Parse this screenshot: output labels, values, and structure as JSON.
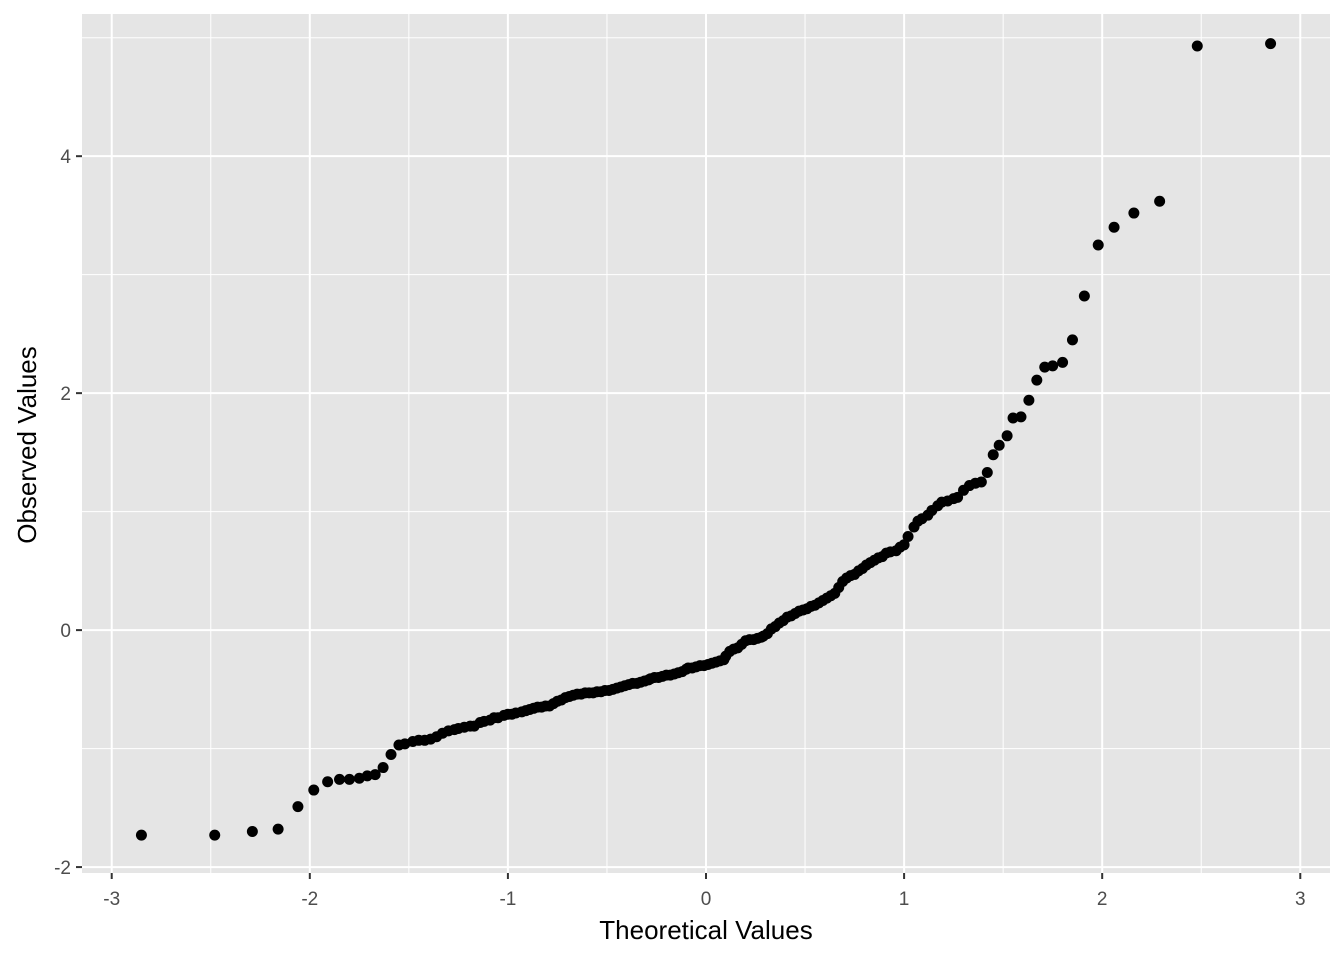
{
  "chart_data": {
    "type": "scatter",
    "title": "",
    "xlabel": "Theoretical Values",
    "ylabel": "Observed Values",
    "xlim": [
      -3.15,
      3.15
    ],
    "ylim": [
      -2.05,
      5.2
    ],
    "x_ticks": [
      -3,
      -2,
      -1,
      0,
      1,
      2,
      3
    ],
    "y_ticks": [
      -2,
      0,
      2,
      4
    ],
    "grid": true,
    "legend": "none",
    "panel_color": "#e5e5e5",
    "point_color": "#000000",
    "grid_color": "#ffffff",
    "series": [
      {
        "points": [
          [
            -2.85,
            -1.73
          ],
          [
            -2.48,
            -1.73
          ],
          [
            -2.29,
            -1.7
          ],
          [
            -2.16,
            -1.68
          ],
          [
            -2.06,
            -1.49
          ],
          [
            -1.98,
            -1.35
          ],
          [
            -1.91,
            -1.28
          ],
          [
            -1.85,
            -1.26
          ],
          [
            -1.8,
            -1.26
          ],
          [
            -1.75,
            -1.25
          ],
          [
            -1.71,
            -1.23
          ],
          [
            -1.67,
            -1.22
          ],
          [
            -1.63,
            -1.16
          ],
          [
            -1.59,
            -1.05
          ],
          [
            -1.55,
            -0.97
          ],
          [
            -1.52,
            -0.96
          ],
          [
            -1.48,
            -0.94
          ],
          [
            -1.45,
            -0.93
          ],
          [
            -1.42,
            -0.93
          ],
          [
            -1.39,
            -0.92
          ],
          [
            -1.36,
            -0.9
          ],
          [
            -1.33,
            -0.87
          ],
          [
            -1.3,
            -0.85
          ],
          [
            -1.27,
            -0.84
          ],
          [
            -1.25,
            -0.83
          ],
          [
            -1.22,
            -0.82
          ],
          [
            -1.19,
            -0.81
          ],
          [
            -1.17,
            -0.81
          ],
          [
            -1.14,
            -0.78
          ],
          [
            -1.12,
            -0.77
          ],
          [
            -1.09,
            -0.76
          ],
          [
            -1.07,
            -0.74
          ],
          [
            -1.05,
            -0.74
          ],
          [
            -1.02,
            -0.72
          ],
          [
            -1.0,
            -0.71
          ],
          [
            -0.98,
            -0.71
          ],
          [
            -0.96,
            -0.7
          ],
          [
            -0.93,
            -0.69
          ],
          [
            -0.91,
            -0.68
          ],
          [
            -0.89,
            -0.67
          ],
          [
            -0.87,
            -0.66
          ],
          [
            -0.85,
            -0.65
          ],
          [
            -0.83,
            -0.65
          ],
          [
            -0.81,
            -0.64
          ],
          [
            -0.79,
            -0.64
          ],
          [
            -0.77,
            -0.62
          ],
          [
            -0.75,
            -0.6
          ],
          [
            -0.73,
            -0.59
          ],
          [
            -0.71,
            -0.57
          ],
          [
            -0.69,
            -0.56
          ],
          [
            -0.67,
            -0.55
          ],
          [
            -0.65,
            -0.54
          ],
          [
            -0.63,
            -0.54
          ],
          [
            -0.61,
            -0.53
          ],
          [
            -0.59,
            -0.53
          ],
          [
            -0.57,
            -0.53
          ],
          [
            -0.55,
            -0.52
          ],
          [
            -0.53,
            -0.52
          ],
          [
            -0.51,
            -0.51
          ],
          [
            -0.49,
            -0.51
          ],
          [
            -0.47,
            -0.5
          ],
          [
            -0.45,
            -0.49
          ],
          [
            -0.43,
            -0.48
          ],
          [
            -0.41,
            -0.47
          ],
          [
            -0.39,
            -0.46
          ],
          [
            -0.37,
            -0.45
          ],
          [
            -0.35,
            -0.45
          ],
          [
            -0.33,
            -0.44
          ],
          [
            -0.31,
            -0.43
          ],
          [
            -0.29,
            -0.42
          ],
          [
            -0.28,
            -0.41
          ],
          [
            -0.26,
            -0.4
          ],
          [
            -0.24,
            -0.4
          ],
          [
            -0.22,
            -0.39
          ],
          [
            -0.2,
            -0.38
          ],
          [
            -0.18,
            -0.38
          ],
          [
            -0.16,
            -0.37
          ],
          [
            -0.14,
            -0.36
          ],
          [
            -0.12,
            -0.35
          ],
          [
            -0.1,
            -0.33
          ],
          [
            -0.09,
            -0.32
          ],
          [
            -0.07,
            -0.32
          ],
          [
            -0.05,
            -0.31
          ],
          [
            -0.03,
            -0.3
          ],
          [
            -0.01,
            -0.3
          ],
          [
            0.01,
            -0.29
          ],
          [
            0.03,
            -0.28
          ],
          [
            0.05,
            -0.27
          ],
          [
            0.07,
            -0.26
          ],
          [
            0.09,
            -0.25
          ],
          [
            0.1,
            -0.22
          ],
          [
            0.12,
            -0.18
          ],
          [
            0.14,
            -0.16
          ],
          [
            0.16,
            -0.15
          ],
          [
            0.18,
            -0.12
          ],
          [
            0.2,
            -0.09
          ],
          [
            0.22,
            -0.08
          ],
          [
            0.24,
            -0.08
          ],
          [
            0.26,
            -0.07
          ],
          [
            0.28,
            -0.06
          ],
          [
            0.29,
            -0.05
          ],
          [
            0.31,
            -0.03
          ],
          [
            0.33,
            0.01
          ],
          [
            0.35,
            0.03
          ],
          [
            0.37,
            0.06
          ],
          [
            0.39,
            0.08
          ],
          [
            0.41,
            0.11
          ],
          [
            0.43,
            0.12
          ],
          [
            0.45,
            0.14
          ],
          [
            0.47,
            0.16
          ],
          [
            0.49,
            0.17
          ],
          [
            0.51,
            0.18
          ],
          [
            0.53,
            0.2
          ],
          [
            0.55,
            0.21
          ],
          [
            0.57,
            0.23
          ],
          [
            0.59,
            0.25
          ],
          [
            0.61,
            0.27
          ],
          [
            0.63,
            0.29
          ],
          [
            0.65,
            0.31
          ],
          [
            0.67,
            0.36
          ],
          [
            0.69,
            0.41
          ],
          [
            0.71,
            0.44
          ],
          [
            0.73,
            0.46
          ],
          [
            0.75,
            0.47
          ],
          [
            0.77,
            0.5
          ],
          [
            0.79,
            0.52
          ],
          [
            0.81,
            0.55
          ],
          [
            0.83,
            0.57
          ],
          [
            0.85,
            0.59
          ],
          [
            0.87,
            0.61
          ],
          [
            0.89,
            0.62
          ],
          [
            0.91,
            0.65
          ],
          [
            0.93,
            0.66
          ],
          [
            0.96,
            0.67
          ],
          [
            0.98,
            0.7
          ],
          [
            1.0,
            0.72
          ],
          [
            1.02,
            0.79
          ],
          [
            1.05,
            0.87
          ],
          [
            1.07,
            0.92
          ],
          [
            1.09,
            0.94
          ],
          [
            1.12,
            0.97
          ],
          [
            1.14,
            1.01
          ],
          [
            1.17,
            1.05
          ],
          [
            1.19,
            1.08
          ],
          [
            1.22,
            1.09
          ],
          [
            1.25,
            1.11
          ],
          [
            1.27,
            1.12
          ],
          [
            1.3,
            1.18
          ],
          [
            1.33,
            1.22
          ],
          [
            1.36,
            1.24
          ],
          [
            1.39,
            1.25
          ],
          [
            1.42,
            1.33
          ],
          [
            1.45,
            1.48
          ],
          [
            1.48,
            1.56
          ],
          [
            1.52,
            1.64
          ],
          [
            1.55,
            1.79
          ],
          [
            1.59,
            1.8
          ],
          [
            1.63,
            1.94
          ],
          [
            1.67,
            2.11
          ],
          [
            1.71,
            2.22
          ],
          [
            1.75,
            2.23
          ],
          [
            1.8,
            2.26
          ],
          [
            1.85,
            2.45
          ],
          [
            1.91,
            2.82
          ],
          [
            1.98,
            3.25
          ],
          [
            2.06,
            3.4
          ],
          [
            2.16,
            3.52
          ],
          [
            2.29,
            3.62
          ],
          [
            2.48,
            4.93
          ],
          [
            2.85,
            4.95
          ]
        ]
      }
    ]
  }
}
